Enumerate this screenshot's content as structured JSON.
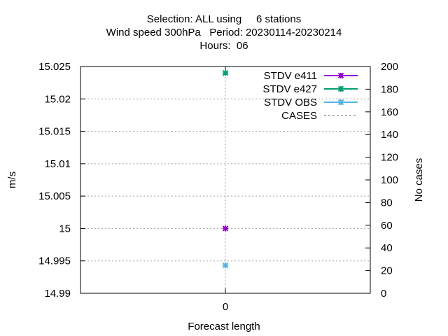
{
  "chart_data": {
    "type": "scatter",
    "title_lines": [
      "Selection: ALL using     6 stations",
      "Wind speed 300hPa   Period: 20230114-20230214",
      "Hours:  06"
    ],
    "xlabel": "Forecast length",
    "ylabel": "m/s",
    "y2label": "No cases",
    "x_categories": [
      "0"
    ],
    "ylim": [
      14.99,
      15.025
    ],
    "yticks": [
      "14.99",
      "14.995",
      "15",
      "15.005",
      "15.01",
      "15.015",
      "15.02",
      "15.025"
    ],
    "y2lim": [
      0,
      200
    ],
    "y2ticks": [
      "0",
      "20",
      "40",
      "60",
      "80",
      "100",
      "120",
      "140",
      "160",
      "180",
      "200"
    ],
    "grid": true,
    "legend_position": "top-right",
    "series": [
      {
        "name": "STDV e411",
        "color": "#9400d3",
        "axis": "y",
        "marker": "star",
        "x": [
          0
        ],
        "values": [
          15.0
        ]
      },
      {
        "name": "STDV e427",
        "color": "#009e73",
        "axis": "y",
        "marker": "star",
        "x": [
          0
        ],
        "values": [
          15.024
        ]
      },
      {
        "name": "STDV OBS",
        "color": "#56b4e9",
        "axis": "y",
        "marker": "star",
        "x": [
          0
        ],
        "values": [
          14.9943
        ]
      },
      {
        "name": "CASES",
        "color": "#808080",
        "axis": "y2",
        "marker": "none",
        "dashed": true,
        "x": [
          0
        ],
        "values": [
          195
        ]
      }
    ]
  }
}
